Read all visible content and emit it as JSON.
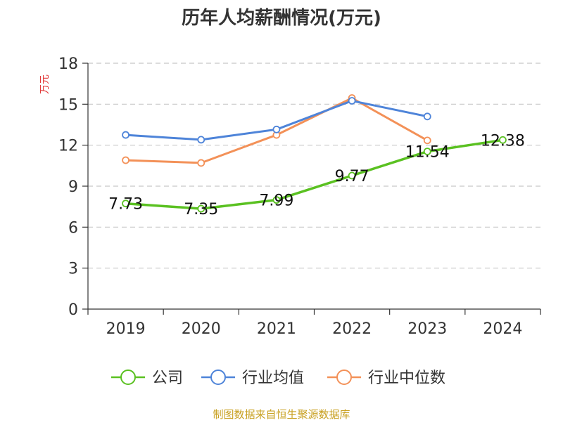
{
  "chart_data": {
    "type": "line",
    "title": "历年人均薪酬情况(万元)",
    "ylabel": "万元",
    "xlabel": "",
    "categories": [
      "2019",
      "2020",
      "2021",
      "2022",
      "2023",
      "2024"
    ],
    "ylim": [
      0,
      18
    ],
    "yticks": [
      0,
      3,
      6,
      9,
      12,
      15,
      18
    ],
    "grid": true,
    "legend_position": "bottom",
    "series": [
      {
        "name": "公司",
        "color": "#5ac121",
        "values": [
          7.73,
          7.35,
          7.99,
          9.77,
          11.54,
          12.38
        ],
        "labels": [
          "7.73",
          "7.35",
          "7.99",
          "9.77",
          "11.54",
          "12.38"
        ],
        "show_labels": true
      },
      {
        "name": "行业均值",
        "color": "#4e84d9",
        "values": [
          12.75,
          12.4,
          13.15,
          15.25,
          14.1,
          null
        ],
        "show_labels": false
      },
      {
        "name": "行业中位数",
        "color": "#f39158",
        "values": [
          10.9,
          10.7,
          12.75,
          15.45,
          12.35,
          null
        ],
        "show_labels": false
      }
    ]
  },
  "colors": {
    "axis_label": "#e23b3b",
    "source_text": "#c8a020"
  },
  "source": "制图数据来自恒生聚源数据库"
}
